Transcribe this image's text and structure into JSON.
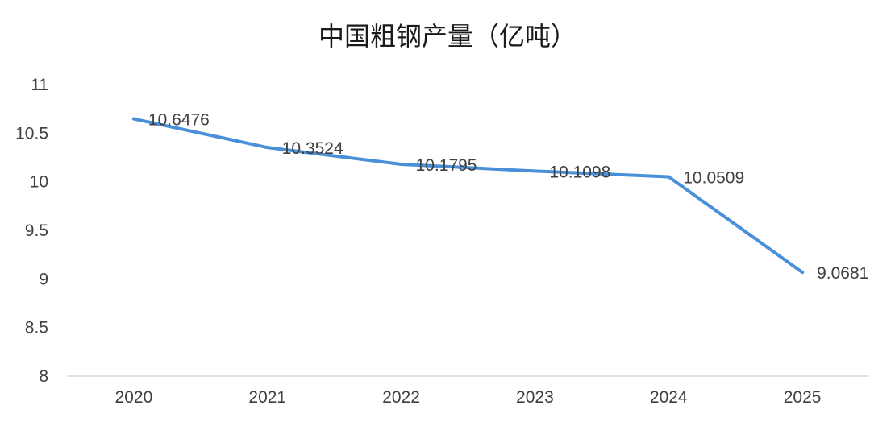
{
  "chart_data": {
    "type": "line",
    "title": "中国粗钢产量（亿吨）",
    "xlabel": "",
    "ylabel": "",
    "categories": [
      "2020",
      "2021",
      "2022",
      "2023",
      "2024",
      "2025"
    ],
    "series": [
      {
        "values": [
          10.6476,
          10.3524,
          10.1795,
          10.1098,
          10.0509,
          9.0681
        ],
        "labels": [
          "10.6476",
          "10.3524",
          "10.1795",
          "10.1098",
          "10.0509",
          "9.0681"
        ],
        "color": "#4a90d9"
      }
    ],
    "ylim": [
      8,
      11
    ],
    "yticks": [
      "8",
      "8.5",
      "9",
      "9.5",
      "10",
      "10.5",
      "11"
    ],
    "grid": false,
    "legend": "none"
  }
}
